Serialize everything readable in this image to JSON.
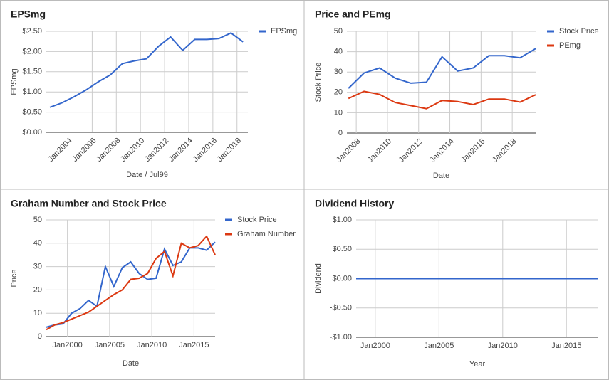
{
  "chart_data": [
    {
      "type": "line",
      "title": "EPSmg",
      "xlabel": "Date / Jul99",
      "ylabel": "EPSmg",
      "grid": true,
      "legend": "right",
      "x": [
        2002.5,
        2003.5,
        2004.5,
        2005.5,
        2006.5,
        2007.5,
        2008.5,
        2009.5,
        2010.5,
        2011.5,
        2012.5,
        2013.5,
        2014.5,
        2015.5,
        2016.5,
        2017.5,
        2018.5
      ],
      "xlim": [
        2002.2,
        2018.9
      ],
      "xticks": [
        {
          "value": 2004,
          "label": "Jan2004"
        },
        {
          "value": 2006,
          "label": "Jan2006"
        },
        {
          "value": 2008,
          "label": "Jan2008"
        },
        {
          "value": 2010,
          "label": "Jan2010"
        },
        {
          "value": 2012,
          "label": "Jan2012"
        },
        {
          "value": 2014,
          "label": "Jan2014"
        },
        {
          "value": 2016,
          "label": "Jan2016"
        },
        {
          "value": 2018,
          "label": "Jan2018"
        }
      ],
      "ylim": [
        0,
        2.5
      ],
      "yticks": [
        {
          "value": 0,
          "label": "$0.00"
        },
        {
          "value": 0.5,
          "label": "$0.50"
        },
        {
          "value": 1,
          "label": "$1.00"
        },
        {
          "value": 1.5,
          "label": "$1.50"
        },
        {
          "value": 2,
          "label": "$2.00"
        },
        {
          "value": 2.5,
          "label": "$2.50"
        }
      ],
      "series": [
        {
          "name": "EPSmg",
          "color": "#3366cc",
          "values": [
            0.62,
            0.73,
            0.88,
            1.05,
            1.25,
            1.42,
            1.7,
            1.77,
            1.82,
            2.13,
            2.36,
            2.03,
            2.3,
            2.3,
            2.32,
            2.46,
            2.24
          ]
        }
      ]
    },
    {
      "type": "line",
      "title": "Price and PEmg",
      "xlabel": "Date",
      "ylabel": "Stock Price",
      "grid": true,
      "legend": "right",
      "x": [
        2007.5,
        2008.5,
        2009.5,
        2010.5,
        2011.5,
        2012.5,
        2013.5,
        2014.5,
        2015.5,
        2016.5,
        2017.5,
        2018.5,
        2019.5
      ],
      "xlim": [
        2007.4,
        2019.5
      ],
      "xticks": [
        {
          "value": 2008,
          "label": "Jan2008"
        },
        {
          "value": 2010,
          "label": "Jan2010"
        },
        {
          "value": 2012,
          "label": "Jan2012"
        },
        {
          "value": 2014,
          "label": "Jan2014"
        },
        {
          "value": 2016,
          "label": "Jan2016"
        },
        {
          "value": 2018,
          "label": "Jan2018"
        }
      ],
      "ylim": [
        0,
        50
      ],
      "yticks": [
        0,
        10,
        20,
        30,
        40,
        50
      ],
      "series": [
        {
          "name": "Stock Price",
          "color": "#3366cc",
          "values": [
            22,
            29.5,
            32,
            27,
            24.5,
            25,
            37.5,
            30.5,
            32,
            38,
            38,
            37,
            41.5
          ]
        },
        {
          "name": "PEmg",
          "color": "#dc3912",
          "values": [
            17,
            20.5,
            19,
            15,
            13.5,
            12,
            16,
            15.5,
            14,
            16.7,
            16.7,
            15.2,
            18.8
          ]
        }
      ]
    },
    {
      "type": "line",
      "title": "Graham Number and Stock Price",
      "xlabel": "Date",
      "ylabel": "Price",
      "grid": true,
      "legend": "right",
      "x": [
        1997.5,
        1998.5,
        1999.5,
        2000.5,
        2001.5,
        2002.5,
        2003.5,
        2004.5,
        2005.5,
        2006.5,
        2007.5,
        2008.5,
        2009.5,
        2010.5,
        2011.5,
        2012.5,
        2013.5,
        2014.5,
        2015.5,
        2016.5,
        2017.5
      ],
      "xlim": [
        1997.5,
        2017.5
      ],
      "xticks": [
        {
          "value": 2000,
          "label": "Jan2000"
        },
        {
          "value": 2005,
          "label": "Jan2005"
        },
        {
          "value": 2010,
          "label": "Jan2010"
        },
        {
          "value": 2015,
          "label": "Jan2015"
        }
      ],
      "ylim": [
        0,
        50
      ],
      "yticks": [
        0,
        10,
        20,
        30,
        40,
        50
      ],
      "series": [
        {
          "name": "Stock Price",
          "color": "#3366cc",
          "values": [
            4,
            5,
            5.5,
            10,
            12,
            15.5,
            13,
            30,
            21.5,
            29.5,
            32,
            27,
            24.5,
            25,
            37.5,
            30.5,
            32,
            38,
            38,
            37,
            40.5
          ]
        },
        {
          "name": "Graham Number",
          "color": "#dc3912",
          "values": [
            3,
            5,
            6,
            7.5,
            9,
            10.5,
            13,
            15.5,
            18,
            20,
            24.5,
            25,
            27,
            33.5,
            36.5,
            26,
            40,
            38,
            39,
            43,
            35
          ]
        }
      ]
    },
    {
      "type": "line",
      "title": "Dividend History",
      "xlabel": "Year",
      "ylabel": "Dividend",
      "grid": true,
      "legend": "none",
      "x": [
        1998.5,
        1999.5,
        2000.5,
        2001.5,
        2002.5,
        2003.5,
        2004.5,
        2005.5,
        2006.5,
        2007.5,
        2008.5,
        2009.5,
        2010.5,
        2011.5,
        2012.5,
        2013.5,
        2014.5,
        2015.5,
        2016.5,
        2017.5
      ],
      "xlim": [
        1998.5,
        2017.5
      ],
      "xticks": [
        {
          "value": 2000,
          "label": "Jan2000"
        },
        {
          "value": 2005,
          "label": "Jan2005"
        },
        {
          "value": 2010,
          "label": "Jan2010"
        },
        {
          "value": 2015,
          "label": "Jan2015"
        }
      ],
      "ylim": [
        -1,
        1
      ],
      "yticks": [
        {
          "value": -1,
          "label": "-$1.00"
        },
        {
          "value": -0.5,
          "label": "-$0.50"
        },
        {
          "value": 0,
          "label": "$0.00"
        },
        {
          "value": 0.5,
          "label": "$0.50"
        },
        {
          "value": 1,
          "label": "$1.00"
        }
      ],
      "series": [
        {
          "name": "Dividend",
          "color": "#3366cc",
          "values": [
            0,
            0,
            0,
            0,
            0,
            0,
            0,
            0,
            0,
            0,
            0,
            0,
            0,
            0,
            0,
            0,
            0,
            0,
            0,
            0
          ]
        }
      ]
    }
  ]
}
